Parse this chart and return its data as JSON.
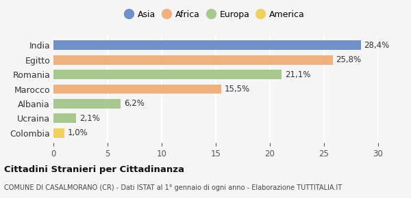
{
  "categories": [
    "India",
    "Egitto",
    "Romania",
    "Marocco",
    "Albania",
    "Ucraina",
    "Colombia"
  ],
  "values": [
    28.4,
    25.8,
    21.1,
    15.5,
    6.2,
    2.1,
    1.0
  ],
  "labels": [
    "28,4%",
    "25,8%",
    "21,1%",
    "15,5%",
    "6,2%",
    "2,1%",
    "1,0%"
  ],
  "colors": [
    "#7090c8",
    "#f0b080",
    "#a8c890",
    "#f0b080",
    "#a8c890",
    "#a8c890",
    "#f0d060"
  ],
  "legend_labels": [
    "Asia",
    "Africa",
    "Europa",
    "America"
  ],
  "legend_colors": [
    "#7090c8",
    "#f0b080",
    "#a8c890",
    "#f0d060"
  ],
  "xlim": [
    0,
    30
  ],
  "xticks": [
    0,
    5,
    10,
    15,
    20,
    25,
    30
  ],
  "title_bold": "Cittadini Stranieri per Cittadinanza",
  "subtitle": "COMUNE DI CASALMORANO (CR) - Dati ISTAT al 1° gennaio di ogni anno - Elaborazione TUTTITALIA.IT",
  "bg_color": "#f5f5f5",
  "bar_height": 0.65
}
